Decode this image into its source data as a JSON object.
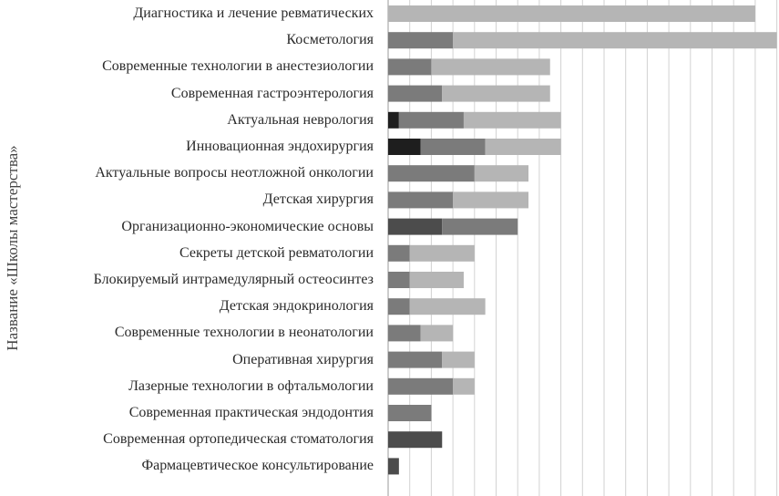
{
  "chart_data": {
    "type": "bar",
    "orientation": "horizontal",
    "stacked": true,
    "title": "",
    "xlabel": "",
    "ylabel": "Название «Школы мастерства»",
    "grid": true,
    "legend": "none",
    "xlim": [
      0,
      18
    ],
    "categories": [
      "Диагностика и лечение ревматических",
      "Косметология",
      "Современные технологии в анестезиологии",
      "Современная гастроэнтерология",
      "Актуальная неврология",
      "Инновационная эндохирургия",
      "Актуальные вопросы неотложной онкологии",
      "Детская хирургия",
      "Организационно-экономические основы",
      "Секреты детской ревматологии",
      "Блокируемый интрамедулярный остеосинтез",
      "Детская эндокринология",
      "Современные технологии в неонатологии",
      "Оперативная хирургия",
      "Лазерные технологии в офтальмологии",
      "Современная практическая эндодонтия",
      "Современная ортопедическая стоматология",
      "Фармацевтическое консультирование"
    ],
    "series": [
      {
        "color": "#1e1e1e",
        "values": [
          0,
          0,
          0,
          0,
          0.5,
          1.5,
          0,
          0,
          0,
          0,
          0,
          0,
          0,
          0,
          0,
          0,
          0,
          0
        ]
      },
      {
        "color": "#4c4c4c",
        "values": [
          0,
          0,
          0,
          0,
          0,
          0,
          0,
          0,
          2.5,
          0,
          0,
          0,
          0,
          0,
          0,
          0,
          2.5,
          0.5
        ]
      },
      {
        "color": "#7b7b7b",
        "values": [
          0,
          3,
          2,
          2.5,
          3,
          3,
          4,
          3,
          3.5,
          1,
          1,
          1,
          1.5,
          2.5,
          3,
          2,
          0,
          0
        ]
      },
      {
        "color": "#b5b5b5",
        "values": [
          17,
          15,
          5.5,
          5,
          4.5,
          3.5,
          2.5,
          3.5,
          0,
          3,
          2.5,
          3.5,
          1.5,
          1.5,
          1,
          0,
          0,
          0
        ]
      }
    ]
  }
}
